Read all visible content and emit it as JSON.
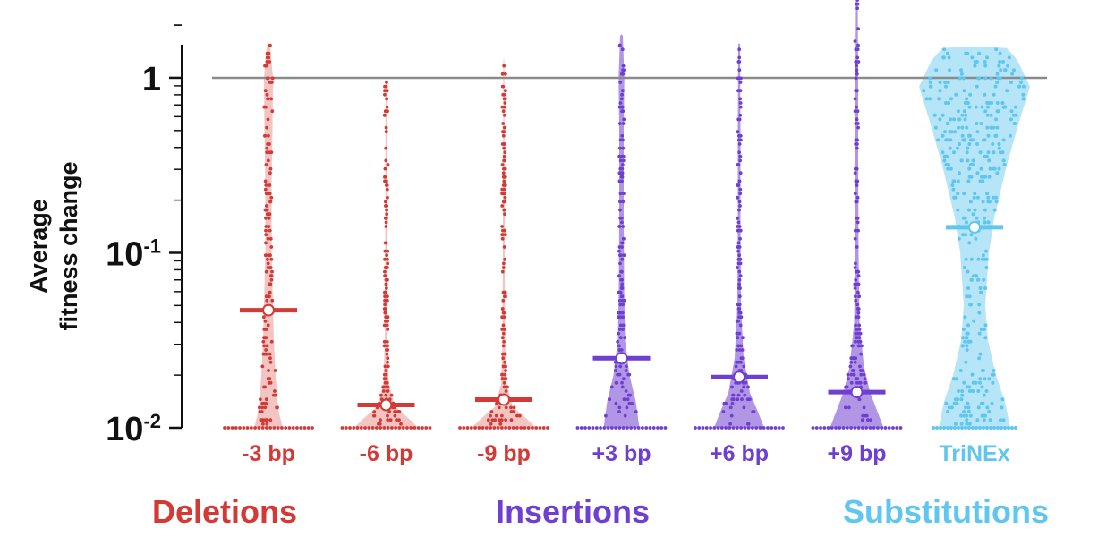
{
  "chart_data": {
    "type": "violin",
    "ylabel_lines": [
      "Average",
      "fitness change"
    ],
    "yscale": "log",
    "ylim": [
      0.01,
      2.2
    ],
    "yticks": [
      {
        "value": 1,
        "base": "1",
        "exp": ""
      },
      {
        "value": 0.1,
        "base": "10",
        "exp": "-1"
      },
      {
        "value": 0.01,
        "base": "10",
        "exp": "-2"
      }
    ],
    "reference_line": 1,
    "colors": {
      "deletions": "#d33a36",
      "insertions": "#6f3fd0",
      "substitutions": "#5fc6ef"
    },
    "categories": [
      {
        "label": "-3 bp",
        "group": "deletions",
        "median": 0.047,
        "max": 1.6,
        "n_floor": 12
      },
      {
        "label": "-6 bp",
        "group": "deletions",
        "median": 0.0135,
        "max": 0.95,
        "n_floor": 12
      },
      {
        "label": "-9 bp",
        "group": "deletions",
        "median": 0.0145,
        "max": 1.3,
        "n_floor": 12
      },
      {
        "label": "+3 bp",
        "group": "insertions",
        "median": 0.025,
        "max": 1.8,
        "n_floor": 12
      },
      {
        "label": "+6 bp",
        "group": "insertions",
        "median": 0.0195,
        "max": 1.6,
        "n_floor": 12
      },
      {
        "label": "+9 bp",
        "group": "insertions",
        "median": 0.016,
        "max": 2.9,
        "n_floor": 12
      },
      {
        "label": "TriNEx",
        "group": "substitutions",
        "median": 0.14,
        "max": 1.5,
        "n_floor": 12
      }
    ],
    "groups": [
      {
        "key": "deletions",
        "label": "Deletions"
      },
      {
        "key": "insertions",
        "label": "Insertions"
      },
      {
        "key": "substitutions",
        "label": "Substitutions"
      }
    ]
  }
}
